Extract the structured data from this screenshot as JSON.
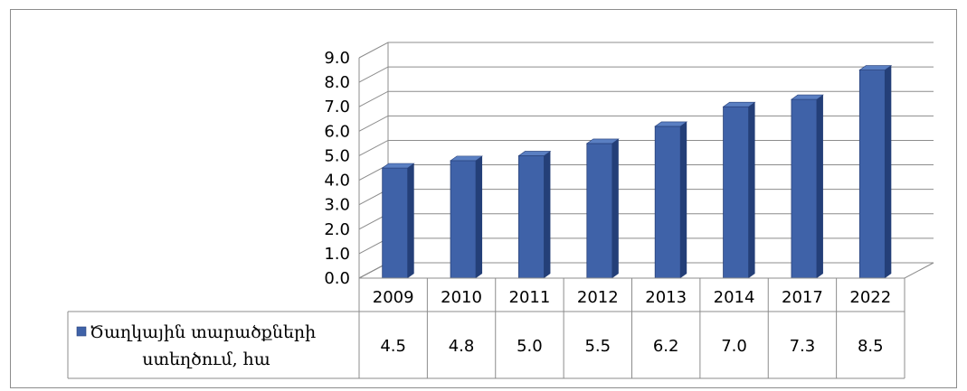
{
  "chart_data": {
    "type": "bar",
    "categories": [
      "2009",
      "2010",
      "2011",
      "2012",
      "2013",
      "2014",
      "2017",
      "2022"
    ],
    "series": [
      {
        "name": "Ծաղկային տարածքների ստեղծում, հա",
        "values": [
          4.5,
          4.8,
          5.0,
          5.5,
          6.2,
          7.0,
          7.3,
          8.5
        ],
        "color": "#3f62a8"
      }
    ],
    "yticks": [
      "0.0",
      "1.0",
      "2.0",
      "3.0",
      "4.0",
      "5.0",
      "6.0",
      "7.0",
      "8.0",
      "9.0"
    ],
    "ylim": [
      0,
      9
    ],
    "grid": true,
    "bar_style": "3d",
    "data_table": true,
    "table_values": [
      "4.5",
      "4.8",
      "5.0",
      "5.5",
      "6.2",
      "7.0",
      "7.3",
      "8.5"
    ],
    "legend": {
      "line1": "Ծաղկային տարածքների",
      "line2": "ստեղծում, հա"
    }
  }
}
